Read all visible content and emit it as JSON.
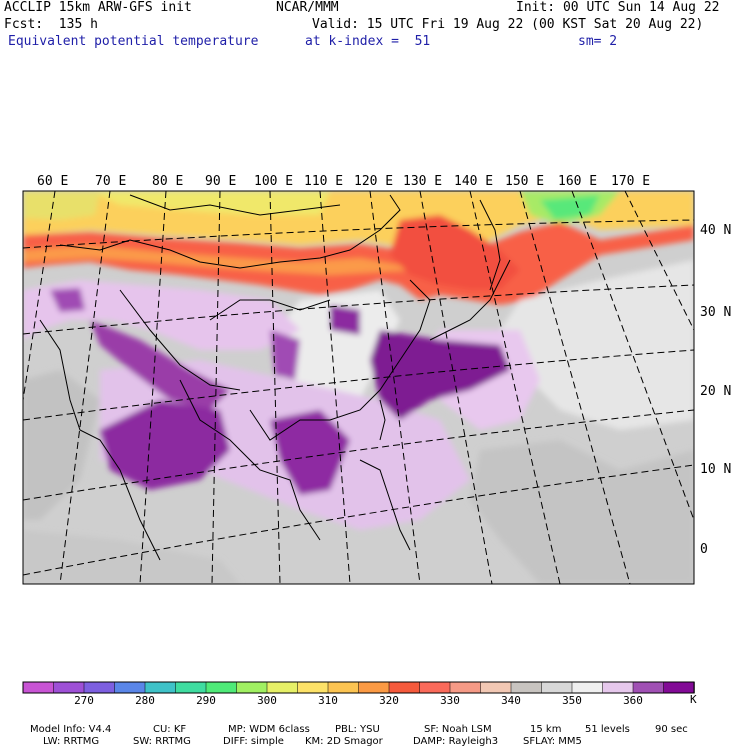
{
  "header": {
    "model": "ACCLIP 15km ARW-GFS init",
    "org": "NCAR/MMM",
    "init": "Init: 00 UTC Sun 14 Aug 22",
    "fcst": "Fcst:  135 h",
    "valid": "Valid: 15 UTC Fri 19 Aug 22 (00 KST Sat 20 Aug 22)",
    "field": "Equivalent potential temperature",
    "level": "at k-index =  51",
    "smooth": "sm= 2"
  },
  "map": {
    "lon_labels": [
      "60 E",
      "70 E",
      "80 E",
      "90 E",
      "100 E",
      "110 E",
      "120 E",
      "130 E",
      "140 E",
      "150 E",
      "160 E",
      "170 E"
    ],
    "lat_labels": [
      "40 N",
      "30 N",
      "20 N",
      "10 N",
      "0"
    ]
  },
  "colorbar": {
    "unit": "K",
    "colors": [
      "#c854d4",
      "#9e50d6",
      "#7d5fe0",
      "#5a86e8",
      "#3fc2c8",
      "#3fdca0",
      "#4fea78",
      "#a0f062",
      "#e6f067",
      "#fde268",
      "#fcc452",
      "#fb9a44",
      "#f55a3c",
      "#fa6a5a",
      "#f59a86",
      "#f2c8b4",
      "#c8c4c0",
      "#d8d8d8",
      "#f0f0f0",
      "#e6c8ec",
      "#a050b4",
      "#820a96"
    ],
    "labels": [
      "270",
      "280",
      "290",
      "300",
      "310",
      "320",
      "330",
      "340",
      "350",
      "360"
    ]
  },
  "footer": {
    "line1": [
      "Model Info: V4.4",
      "CU: KF",
      "MP: WDM 6class",
      "PBL: YSU",
      "SF: Noah LSM",
      "15 km",
      "51 levels",
      "90 sec"
    ],
    "line2": [
      "LW: RRTMG",
      "SW: RRTMG",
      "DIFF: simple",
      "KM: 2D Smagor",
      "DAMP: Rayleigh3",
      "SFLAY: MM5"
    ]
  }
}
